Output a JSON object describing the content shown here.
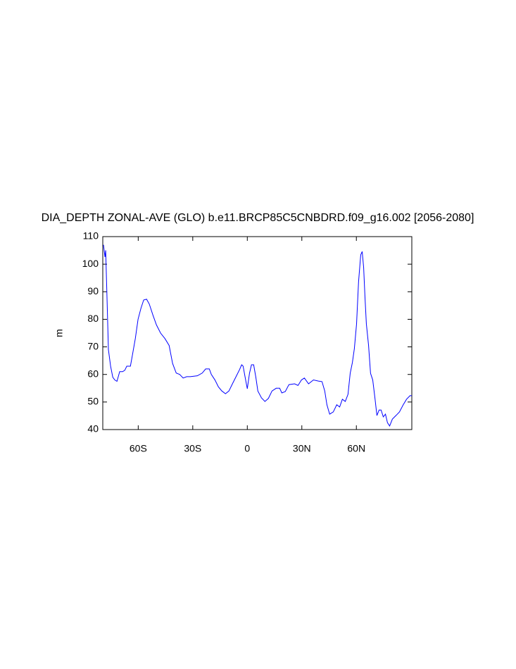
{
  "chart_data": {
    "type": "line",
    "title": "DIA_DEPTH ZONAL-AVE (GLO) b.e11.BRCP85C5CNBDRD.f09_g16.002 [2056-2080]",
    "y_label": "m",
    "xlim": [
      -79.5,
      90.5
    ],
    "ylim": [
      40,
      110
    ],
    "xticks": [
      {
        "value": -60,
        "label": "60S"
      },
      {
        "value": -30,
        "label": "30S"
      },
      0,
      {
        "value": 30,
        "label": "30N"
      },
      {
        "value": 60,
        "label": "60N"
      }
    ],
    "yticks": [
      40,
      50,
      60,
      70,
      80,
      90,
      100,
      110
    ],
    "series": [
      {
        "color": "#0000ff",
        "x": [
          -79.1,
          -78.3,
          -77.9,
          -77.1,
          -76.4,
          -75.2,
          -74.0,
          -72.9,
          -71.7,
          -70.2,
          -68.6,
          -67.4,
          -66.3,
          -64.3,
          -63.2,
          -61.6,
          -60.1,
          -58.5,
          -57.0,
          -55.4,
          -53.9,
          -51.9,
          -50.0,
          -47.7,
          -45.3,
          -43.0,
          -41.1,
          -39.1,
          -37.2,
          -35.3,
          -33.3,
          -31.4,
          -27.5,
          -24.8,
          -22.9,
          -20.9,
          -19.8,
          -17.8,
          -15.9,
          -14.0,
          -12.0,
          -10.1,
          -8.1,
          -6.2,
          -4.3,
          -3.1,
          -2.3,
          -1.2,
          0,
          1.2,
          2.3,
          3.5,
          4.7,
          5.8,
          7.8,
          9.7,
          11.6,
          13.6,
          15.9,
          17.8,
          19.0,
          20.9,
          22.9,
          26.0,
          27.9,
          29.8,
          31.4,
          33.7,
          36.4,
          39.1,
          41.1,
          42.6,
          43.8,
          45.3,
          47.3,
          49.2,
          50.8,
          52.3,
          53.9,
          55.4,
          56.6,
          57.8,
          58.9,
          60.1,
          61.2,
          62.4,
          63.2,
          64.0,
          64.7,
          65.5,
          66.7,
          67.8,
          69.0,
          70.2,
          71.3,
          72.5,
          73.6,
          74.8,
          76.0,
          77.1,
          78.3,
          79.8,
          81.8,
          83.7,
          85.7,
          87.6,
          89.5,
          90.5
        ],
        "values": [
          107,
          102.6,
          105,
          86,
          69,
          63,
          59,
          58,
          57.5,
          61,
          61,
          61.5,
          63,
          63,
          67,
          73,
          80,
          84,
          87,
          87.3,
          85.5,
          81.5,
          78,
          75,
          73,
          70.5,
          64,
          60.5,
          60,
          58.7,
          59.2,
          59.2,
          59.5,
          60.5,
          62,
          62,
          60,
          58,
          55.5,
          54,
          53,
          54,
          56.7,
          59.2,
          61.7,
          63.5,
          63,
          59,
          54.8,
          60.4,
          63.5,
          63.5,
          59,
          54,
          51.5,
          50.2,
          51.3,
          54,
          55,
          55,
          53.3,
          53.8,
          56.3,
          56.6,
          56,
          58,
          58.7,
          56.6,
          58,
          57.6,
          57.4,
          54,
          49,
          45.6,
          46.4,
          49,
          48.2,
          51,
          50.2,
          52.8,
          60.4,
          64.3,
          69.4,
          78.3,
          93.6,
          103.4,
          104.6,
          98.8,
          88.5,
          78.3,
          70.6,
          60.4,
          58,
          51.5,
          45.1,
          47.1,
          47.1,
          44.6,
          45.6,
          42.5,
          41.3,
          43.8,
          45.1,
          46.4,
          48.9,
          51,
          52.3,
          52.3
        ]
      }
    ]
  }
}
